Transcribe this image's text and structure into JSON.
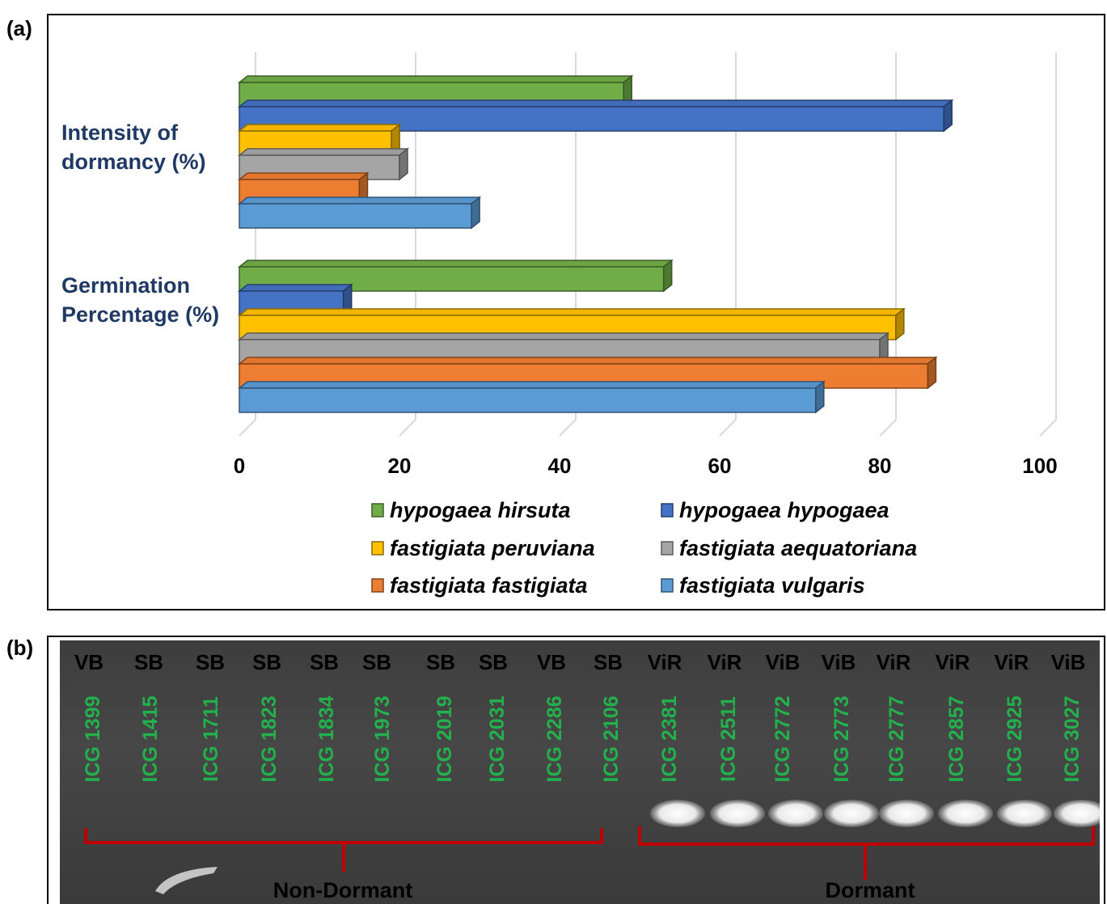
{
  "panels": {
    "a": "(a)",
    "b": "(b)"
  },
  "chart_data": {
    "type": "bar",
    "orientation": "horizontal",
    "categories": [
      "Intensity of dormancy (%)",
      "Germination Percentage (%)"
    ],
    "category_lines": [
      [
        "Intensity of",
        "dormancy (%)"
      ],
      [
        "Germination",
        "Percentage (%)"
      ]
    ],
    "xlim": [
      0,
      100
    ],
    "xticks": [
      "0",
      "20",
      "40",
      "60",
      "80",
      "100"
    ],
    "grid": true,
    "legend_position": "bottom",
    "series": [
      {
        "name": "hypogaea hirsuta",
        "color": "#70ad47",
        "values": [
          48,
          53
        ]
      },
      {
        "name": "hypogaea hypogaea",
        "color": "#4472c4",
        "values": [
          88,
          13
        ]
      },
      {
        "name": "fastigiata peruviana",
        "color": "#ffc000",
        "values": [
          19,
          82
        ]
      },
      {
        "name": "fastigiata aequatoriana",
        "color": "#a5a5a5",
        "values": [
          20,
          80
        ]
      },
      {
        "name": "fastigiata fastigiata",
        "color": "#ed7d31",
        "values": [
          15,
          86
        ]
      },
      {
        "name": "fastigiata vulgaris",
        "color": "#5b9bd5",
        "values": [
          29,
          72
        ]
      }
    ]
  },
  "gel": {
    "lanes": [
      {
        "type": "VB",
        "id": "ICG 1399",
        "band": false
      },
      {
        "type": "SB",
        "id": "ICG 1415",
        "band": false
      },
      {
        "type": "SB",
        "id": "ICG 1711",
        "band": false
      },
      {
        "type": "SB",
        "id": "ICG 1823",
        "band": false
      },
      {
        "type": "SB",
        "id": "ICG 1834",
        "band": false
      },
      {
        "type": "SB",
        "id": "ICG 1973",
        "band": false
      },
      {
        "type": "SB",
        "id": "ICG 2019",
        "band": false
      },
      {
        "type": "SB",
        "id": "ICG 2031",
        "band": false
      },
      {
        "type": "VB",
        "id": "ICG 2286",
        "band": false
      },
      {
        "type": "SB",
        "id": "ICG 2106",
        "band": false
      },
      {
        "type": "ViR",
        "id": "ICG 2381",
        "band": true
      },
      {
        "type": "ViR",
        "id": "ICG 2511",
        "band": true
      },
      {
        "type": "ViB",
        "id": "ICG 2772",
        "band": true
      },
      {
        "type": "ViB",
        "id": "ICG 2773",
        "band": true
      },
      {
        "type": "ViR",
        "id": "ICG 2777",
        "band": true
      },
      {
        "type": "ViR",
        "id": "ICG 2857",
        "band": true
      },
      {
        "type": "ViR",
        "id": "ICG 2925",
        "band": true
      },
      {
        "type": "ViB",
        "id": "ICG 3027",
        "band": true
      }
    ],
    "groups": [
      "Non-Dormant",
      "Dormant"
    ],
    "bracket_color": "#c00000"
  }
}
